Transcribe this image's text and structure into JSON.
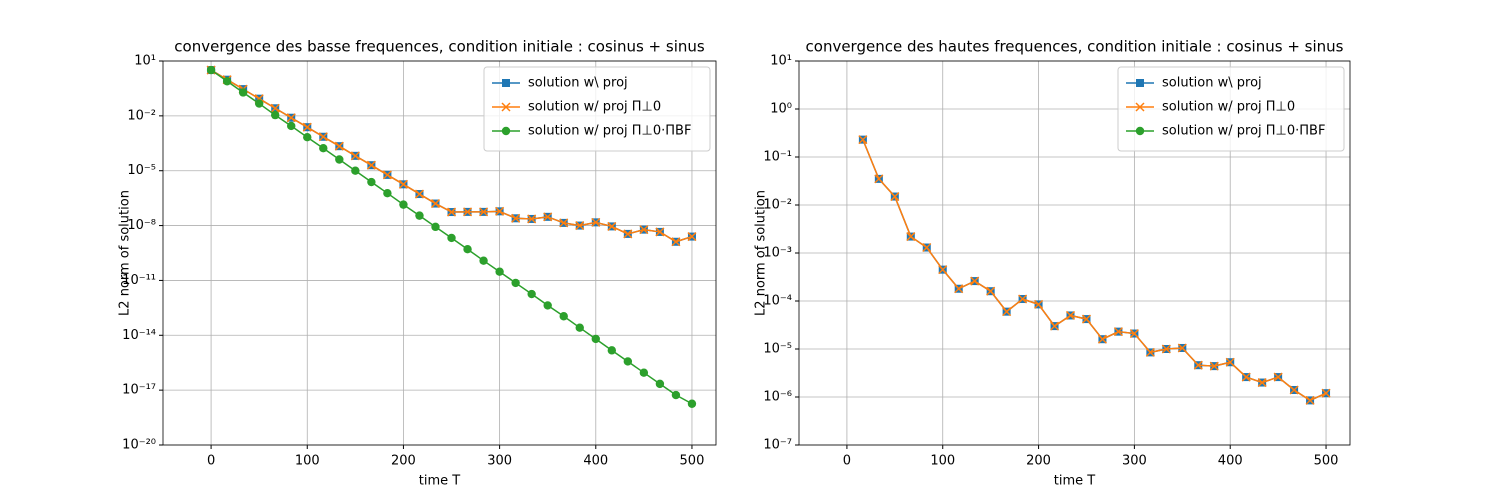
{
  "chart_data": [
    {
      "type": "line",
      "title": "convergence des basse frequences, condition initiale : cosinus + sinus",
      "xlabel": "time T",
      "ylabel": "L2 norm of solution",
      "x": [
        0,
        16.67,
        33.33,
        50,
        66.67,
        83.33,
        100,
        116.67,
        133.33,
        150,
        166.67,
        183.33,
        200,
        216.67,
        233.33,
        250,
        266.67,
        283.33,
        300,
        316.67,
        333.33,
        350,
        366.67,
        383.33,
        400,
        416.67,
        433.33,
        450,
        466.67,
        483.33,
        500
      ],
      "series": [
        {
          "name": "solution w\\ proj",
          "color": "#1f77b4",
          "marker": "square",
          "values": [
            3.2,
            0.95,
            0.29,
            0.087,
            0.026,
            0.0079,
            0.0024,
            0.00072,
            0.00022,
            6.5e-05,
            2e-05,
            5.9e-06,
            1.8e-06,
            5.3e-07,
            1.6e-07,
            5.5e-08,
            5.6e-08,
            5.6e-08,
            6e-08,
            2.5e-08,
            2.3e-08,
            3e-08,
            1.4e-08,
            1e-08,
            1.5e-08,
            9e-09,
            3.5e-09,
            6e-09,
            4.5e-09,
            1.3e-09,
            2.5e-09
          ]
        },
        {
          "name": "solution w/ proj Π⊥0",
          "color": "#ff7f0e",
          "marker": "x",
          "values": [
            3.2,
            0.95,
            0.29,
            0.087,
            0.026,
            0.0079,
            0.0024,
            0.00072,
            0.00022,
            6.5e-05,
            2e-05,
            5.9e-06,
            1.8e-06,
            5.3e-07,
            1.6e-07,
            5.5e-08,
            5.6e-08,
            5.6e-08,
            6e-08,
            2.5e-08,
            2.3e-08,
            3e-08,
            1.4e-08,
            1e-08,
            1.5e-08,
            9e-09,
            3.5e-09,
            6e-09,
            4.5e-09,
            1.3e-09,
            2.5e-09
          ]
        },
        {
          "name": "solution w/ proj Π⊥0·ΠBF",
          "color": "#2ca02c",
          "marker": "circle",
          "values": [
            3.2,
            0.78,
            0.19,
            0.047,
            0.011,
            0.0028,
            0.00068,
            0.00017,
            4.1e-05,
            1e-05,
            2.4e-06,
            5.9e-07,
            1.4e-07,
            3.5e-08,
            8.5e-09,
            2.1e-09,
            5.1e-10,
            1.2e-10,
            3e-11,
            7.3e-12,
            1.8e-12,
            4.3e-13,
            1.1e-13,
            2.6e-14,
            6.3e-15,
            1.5e-15,
            3.7e-16,
            9e-17,
            2.2e-17,
            5.4e-18,
            1.8e-18
          ]
        }
      ],
      "xlim": [
        -50,
        525
      ],
      "xticks": [
        0,
        100,
        200,
        300,
        400,
        500
      ],
      "ylog": true,
      "ylim": [
        1e-20,
        10
      ],
      "yticks": [
        {
          "value": 10,
          "label": "10¹"
        },
        {
          "value": 0.01,
          "label": "10⁻²"
        },
        {
          "value": 1e-05,
          "label": "10⁻⁵"
        },
        {
          "value": 1e-08,
          "label": "10⁻⁸"
        },
        {
          "value": 1e-11,
          "label": "10⁻¹¹"
        },
        {
          "value": 1e-14,
          "label": "10⁻¹⁴"
        },
        {
          "value": 1e-17,
          "label": "10⁻¹⁷"
        },
        {
          "value": 1e-20,
          "label": "10⁻²⁰"
        }
      ],
      "grid": true,
      "legend": "upper right"
    },
    {
      "type": "line",
      "title": "convergence des hautes frequences, condition initiale : cosinus + sinus",
      "xlabel": "time T",
      "ylabel": "L2 norm of solution",
      "x": [
        0,
        16.67,
        33.33,
        50,
        66.67,
        83.33,
        100,
        116.67,
        133.33,
        150,
        166.67,
        183.33,
        200,
        216.67,
        233.33,
        250,
        266.67,
        283.33,
        300,
        316.67,
        333.33,
        350,
        366.67,
        383.33,
        400,
        416.67,
        433.33,
        450,
        466.67,
        483.33,
        500
      ],
      "series": [
        {
          "name": "solution w\\ proj",
          "color": "#1f77b4",
          "marker": "square",
          "values": [
            null,
            0.23,
            0.035,
            0.015,
            0.0022,
            0.0013,
            0.00045,
            0.00018,
            0.00026,
            0.00016,
            6e-05,
            0.00011,
            8.5e-05,
            3e-05,
            5e-05,
            4.2e-05,
            1.6e-05,
            2.3e-05,
            2.1e-05,
            8.5e-06,
            1e-05,
            1.05e-05,
            4.6e-06,
            4.4e-06,
            5.3e-06,
            2.6e-06,
            2e-06,
            2.6e-06,
            1.4e-06,
            8.5e-07,
            1.2e-06
          ]
        },
        {
          "name": "solution w/ proj Π⊥0",
          "color": "#ff7f0e",
          "marker": "x",
          "values": [
            null,
            0.23,
            0.035,
            0.015,
            0.0022,
            0.0013,
            0.00045,
            0.00018,
            0.00026,
            0.00016,
            6e-05,
            0.00011,
            8.5e-05,
            3e-05,
            5e-05,
            4.2e-05,
            1.6e-05,
            2.3e-05,
            2.1e-05,
            8.5e-06,
            1e-05,
            1.05e-05,
            4.6e-06,
            4.4e-06,
            5.3e-06,
            2.6e-06,
            2e-06,
            2.6e-06,
            1.4e-06,
            8.5e-07,
            1.2e-06
          ]
        },
        {
          "name": "solution w/ proj Π⊥0·ΠBF",
          "color": "#2ca02c",
          "marker": "circle",
          "values": [
            null,
            null,
            null,
            null,
            null,
            null,
            null,
            null,
            null,
            null,
            null,
            null,
            null,
            null,
            null,
            null,
            null,
            null,
            null,
            null,
            null,
            null,
            null,
            null,
            null,
            null,
            null,
            null,
            null,
            null,
            null
          ]
        }
      ],
      "xlim": [
        -50,
        525
      ],
      "xticks": [
        0,
        100,
        200,
        300,
        400,
        500
      ],
      "ylog": true,
      "ylim": [
        1e-07,
        10
      ],
      "yticks": [
        {
          "value": 10,
          "label": "10¹"
        },
        {
          "value": 1,
          "label": "10⁰"
        },
        {
          "value": 0.1,
          "label": "10⁻¹"
        },
        {
          "value": 0.01,
          "label": "10⁻²"
        },
        {
          "value": 0.001,
          "label": "10⁻³"
        },
        {
          "value": 0.0001,
          "label": "10⁻⁴"
        },
        {
          "value": 1e-05,
          "label": "10⁻⁵"
        },
        {
          "value": 1e-06,
          "label": "10⁻⁶"
        },
        {
          "value": 1e-07,
          "label": "10⁻⁷"
        }
      ],
      "grid": true,
      "legend": "upper right"
    }
  ]
}
